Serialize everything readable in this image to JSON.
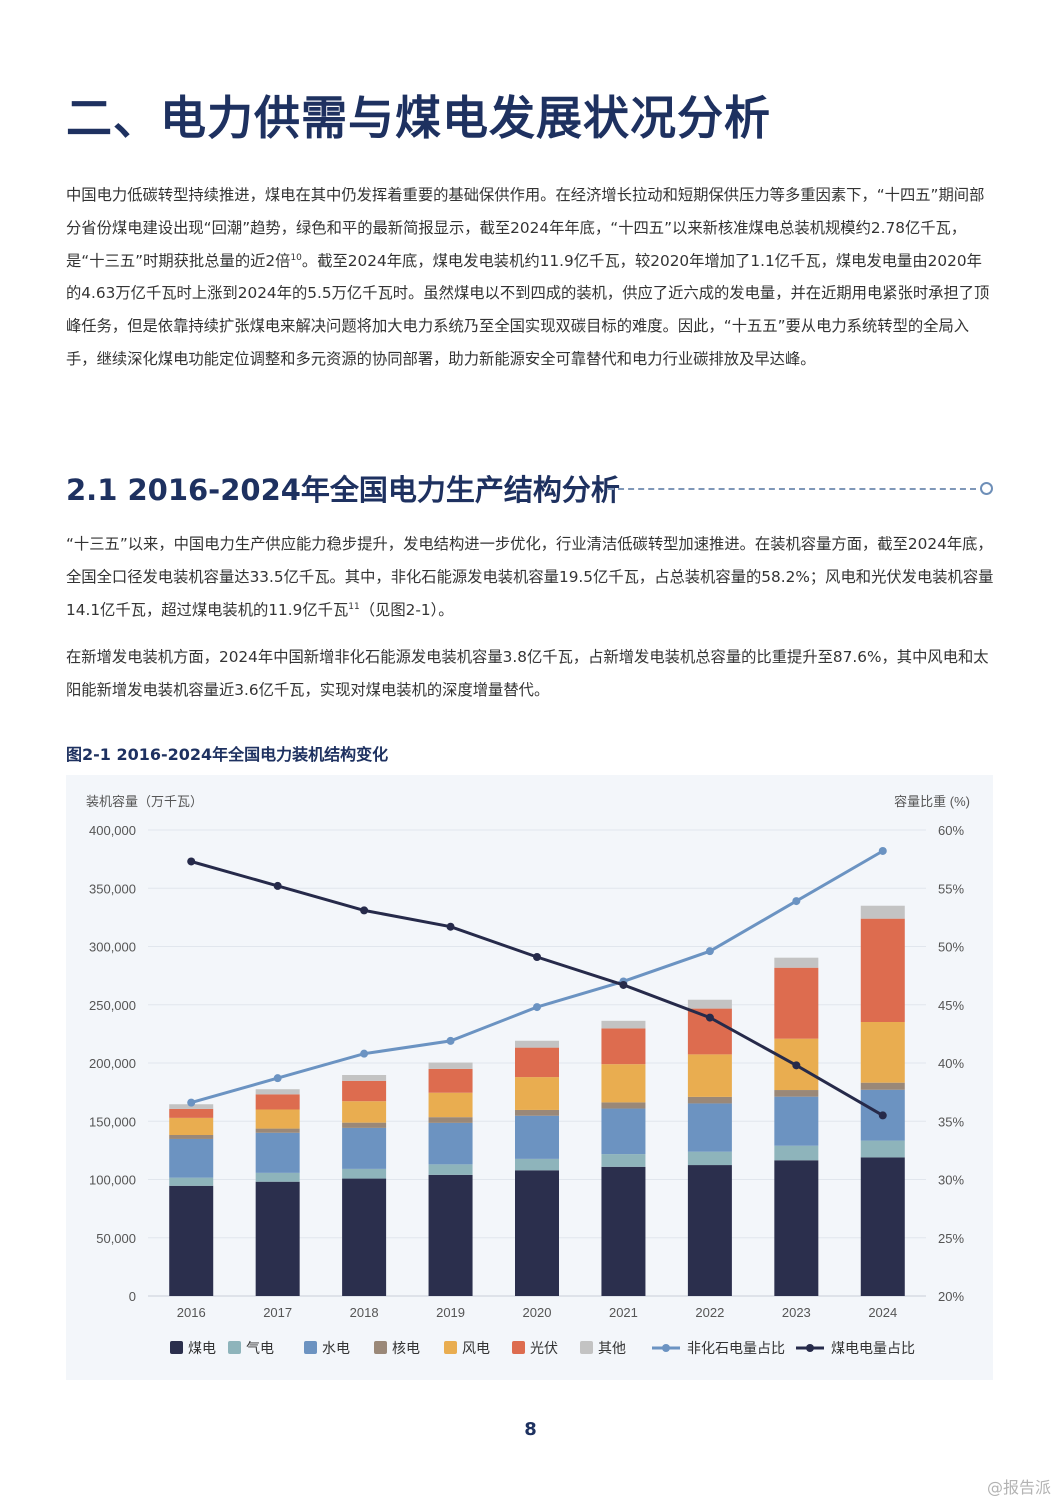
{
  "page": {
    "title": "二、电力供需与煤电发展状况分析",
    "number": "8",
    "watermark": "@报告派"
  },
  "intro": {
    "p1_a": "中国电力低碳转型持续推进，煤电在其中仍发挥着重要的基础保供作用。在经济增长拉动和短期保供压力等多重因素下，“十四五”期间部分省份煤电建设出现“回潮”趋势，绿色和平的最新简报显示，截至2024年年底，“十四五”以来新核准煤电总装机规模约2.78亿千瓦，是“十三五”时期获批总量的近2倍",
    "p1_ref": "10",
    "p1_b": "。截至2024年底，煤电发电装机约11.9亿千瓦，较2020年增加了1.1亿千瓦，煤电发电量由2020年的4.63万亿千瓦时上涨到2024年的5.5万亿千瓦时。虽然煤电以不到四成的装机，供应了近六成的发电量，并在近期用电紧张时承担了顶峰任务，但是依靠持续扩张煤电来解决问题将加大电力系统乃至全国实现双碳目标的难度。因此，“十五五”要从电力系统转型的全局入手，继续深化煤电功能定位调整和多元资源的协同部署，助力新能源安全可靠替代和电力行业碳排放及早达峰。"
  },
  "section": {
    "heading": "2.1 2016-2024年全国电力生产结构分析",
    "p2_a": "“十三五”以来，中国电力生产供应能力稳步提升，发电结构进一步优化，行业清洁低碳转型加速推进。在装机容量方面，截至2024年底，全国全口径发电装机容量达33.5亿千瓦。其中，非化石能源发电装机容量19.5亿千瓦，占总装机容量的58.2%；风电和光伏发电装机容量14.1亿千瓦，超过煤电装机的11.9亿千瓦",
    "p2_ref": "11",
    "p2_b": "（见图2-1）。",
    "p3": "在新增发电装机方面，2024年中国新增非化石能源发电装机容量3.8亿千瓦，占新增发电装机总容量的比重提升至87.6%，其中风电和太阳能新增发电装机容量近3.6亿千瓦，实现对煤电装机的深度增量替代。"
  },
  "figure": {
    "caption": "图2-1 2016-2024年全国电力装机结构变化"
  },
  "chart_data": {
    "type": "bar",
    "stacked": true,
    "categories": [
      "2016",
      "2017",
      "2018",
      "2019",
      "2020",
      "2021",
      "2022",
      "2023",
      "2024"
    ],
    "ylabel": "装机容量（万千瓦）",
    "ylabel_right": "容量比重 (%)",
    "ylim": [
      0,
      400000
    ],
    "yticks": [
      "0",
      "50,000",
      "100,000",
      "150,000",
      "200,000",
      "250,000",
      "300,000",
      "350,000",
      "400,000"
    ],
    "ylim_right": [
      20,
      60
    ],
    "yticks_right": [
      "20%",
      "25%",
      "30%",
      "35%",
      "40%",
      "45%",
      "50%",
      "55%",
      "60%"
    ],
    "grid": true,
    "legend_position": "bottom",
    "series": [
      {
        "name": "煤电",
        "kind": "bar",
        "color": "#2b2f4d",
        "values": [
          94600,
          98100,
          100800,
          104000,
          107900,
          110900,
          112400,
          116500,
          119000
        ]
      },
      {
        "name": "气电",
        "kind": "bar",
        "color": "#8eb4bb",
        "values": [
          7000,
          7600,
          8300,
          9000,
          9800,
          10900,
          11500,
          12500,
          14400
        ]
      },
      {
        "name": "水电",
        "kind": "bar",
        "color": "#6c93c1",
        "values": [
          33200,
          34400,
          35200,
          35600,
          37000,
          39100,
          41400,
          42100,
          43600
        ]
      },
      {
        "name": "核电",
        "kind": "bar",
        "color": "#9a8878",
        "values": [
          3400,
          3600,
          4500,
          4900,
          5000,
          5300,
          5600,
          5700,
          6100
        ]
      },
      {
        "name": "风电",
        "kind": "bar",
        "color": "#e9ad50",
        "values": [
          14700,
          16400,
          18400,
          21000,
          28200,
          32800,
          36500,
          44100,
          52100
        ]
      },
      {
        "name": "光伏",
        "kind": "bar",
        "color": "#dd6c4f",
        "values": [
          7700,
          13000,
          17500,
          20500,
          25300,
          30700,
          39300,
          60900,
          88700
        ]
      },
      {
        "name": "其他",
        "kind": "bar",
        "color": "#c3c3c3",
        "values": [
          4000,
          4400,
          5000,
          5400,
          5900,
          6500,
          7600,
          8600,
          11100
        ]
      },
      {
        "name": "非化石电量占比",
        "kind": "line",
        "axis": "right",
        "color": "#6b93c2",
        "values": [
          36.6,
          38.7,
          40.8,
          41.9,
          44.8,
          47.0,
          49.6,
          53.9,
          58.2
        ]
      },
      {
        "name": "煤电电量占比",
        "kind": "line",
        "axis": "right",
        "color": "#262a4a",
        "values": [
          57.3,
          55.2,
          53.1,
          51.7,
          49.1,
          46.7,
          43.9,
          39.8,
          35.5
        ]
      }
    ]
  }
}
